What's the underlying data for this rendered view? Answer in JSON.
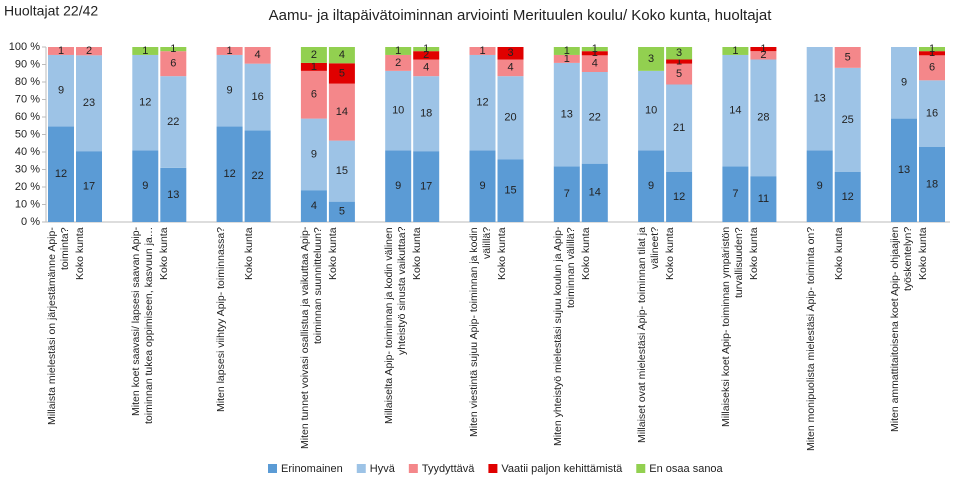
{
  "chart_data": {
    "type": "bar",
    "stacked": "percent",
    "title": "Aamu- ja iltapäivätoiminnan arviointi Merituulen koulu/ Koko kunta, huoltajat",
    "subtitle": "Huoltajat 22/42",
    "categories": [
      "Millaista mielestäsi on järjestämänne Apip- toiminta?",
      "Koko kunta",
      "Miten koet saavasi/ lapsesi saavan Apip- toiminnan tukea oppimiseen, kasvuun ja…",
      "Koko kunta",
      "Miten lapsesi viihtyy Apip- toiminnassa?",
      "Koko kunta",
      "Miten tunnet voivasi osallistua ja vaikuttaa Apip- toiminnan suunnitteluun?",
      "Koko kunta",
      "Millaiselta Apip- toiminnan ja kodin välinen yhteistyö sinusta vaikuttaa?",
      "Koko kunta",
      "Miten viestintä sujuu Apip- toiminnan ja kodin välillä?",
      "Koko kunta",
      "Miten yhteistyö mielestäsi sujuu koulun ja Apip- toiminnan välillä?",
      "Koko kunta",
      "Millaiset ovat mielestäsi Apip- toiminnan tilat ja välineet?",
      "Koko kunta",
      "Millaiseksi koet Apip- toiminnan ympäristön turvallisuuden?",
      "Koko kunta",
      "Miten monipuolista mielestäsi Apip- toiminta on?",
      "Koko kunta",
      "Miten ammattitaitoisena koet Apip- ohjaajien työskentelyn?",
      "Koko kunta"
    ],
    "series": [
      {
        "name": "Erinomainen",
        "color": "#5b9bd5",
        "values": [
          12,
          17,
          9,
          13,
          12,
          22,
          4,
          5,
          9,
          17,
          9,
          15,
          7,
          14,
          9,
          12,
          7,
          11,
          9,
          12,
          13,
          18
        ]
      },
      {
        "name": "Hyvä",
        "color": "#9dc3e6",
        "values": [
          9,
          23,
          12,
          22,
          9,
          16,
          9,
          15,
          10,
          18,
          12,
          20,
          13,
          22,
          10,
          21,
          14,
          28,
          13,
          25,
          9,
          16
        ]
      },
      {
        "name": "Tyydyttävä",
        "color": "#f4878a",
        "values": [
          1,
          2,
          null,
          6,
          1,
          4,
          6,
          14,
          2,
          4,
          1,
          4,
          1,
          4,
          null,
          5,
          null,
          2,
          null,
          5,
          null,
          6
        ]
      },
      {
        "name": "Vaatii paljon kehittämistä",
        "color": "#e00000",
        "values": [
          null,
          null,
          null,
          null,
          null,
          null,
          1,
          5,
          null,
          2,
          null,
          3,
          null,
          1,
          null,
          1,
          null,
          1,
          null,
          null,
          null,
          1
        ]
      },
      {
        "name": "En osaa sanoa",
        "color": "#92d050",
        "values": [
          null,
          null,
          1,
          1,
          null,
          null,
          2,
          4,
          1,
          1,
          null,
          null,
          1,
          1,
          3,
          3,
          1,
          null,
          null,
          null,
          null,
          1
        ]
      }
    ],
    "ylim": [
      0,
      100
    ],
    "yticks": [
      {
        "value": 0,
        "label": "0 %"
      },
      {
        "value": 10,
        "label": "10 %"
      },
      {
        "value": 20,
        "label": "20 %"
      },
      {
        "value": 30,
        "label": "30 %"
      },
      {
        "value": 40,
        "label": "40 %"
      },
      {
        "value": 50,
        "label": "50 %"
      },
      {
        "value": 60,
        "label": "60 %"
      },
      {
        "value": 70,
        "label": "70 %"
      },
      {
        "value": 80,
        "label": "80 %"
      },
      {
        "value": 90,
        "label": "90 %"
      },
      {
        "value": 100,
        "label": "100 %"
      }
    ]
  }
}
